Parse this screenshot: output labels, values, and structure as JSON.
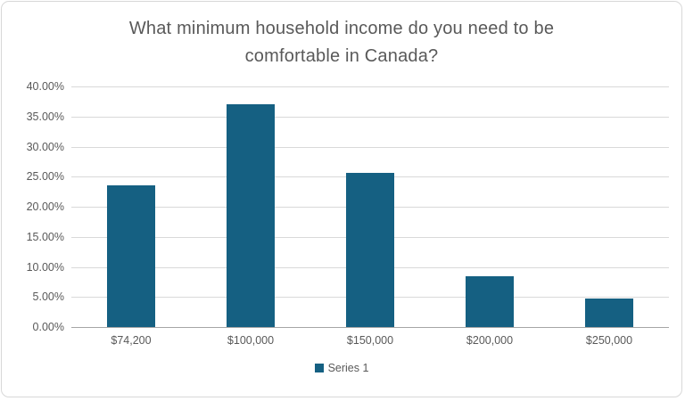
{
  "window": {
    "background": "#FFFFFF",
    "border_color": "#D8D8D8"
  },
  "chart_data": {
    "type": "bar",
    "title": "What minimum household income do you need to be comfortable in Canada?",
    "title_lines": [
      "What minimum household income do you need to be",
      "comfortable in Canada?"
    ],
    "categories": [
      "$74,200",
      "$100,000",
      "$150,000",
      "$200,000",
      "$250,000"
    ],
    "series": [
      {
        "name": "Series 1",
        "color": "#156082",
        "values": [
          23.6,
          37.1,
          25.7,
          8.4,
          4.8
        ]
      }
    ],
    "xlabel": "",
    "ylabel": "",
    "ylim": [
      0,
      40
    ],
    "y_ticks": [
      {
        "value": 0,
        "label": "0.00%"
      },
      {
        "value": 5,
        "label": "5.00%"
      },
      {
        "value": 10,
        "label": "10.00%"
      },
      {
        "value": 15,
        "label": "15.00%"
      },
      {
        "value": 20,
        "label": "20.00%"
      },
      {
        "value": 25,
        "label": "25.00%"
      },
      {
        "value": 30,
        "label": "30.00%"
      },
      {
        "value": 35,
        "label": "35.00%"
      },
      {
        "value": 40,
        "label": "40.00%"
      }
    ],
    "grid": true,
    "legend_position": "bottom",
    "colors": {
      "bar": "#156082",
      "gridline": "#D9D9D9",
      "axis_line": "#A6A6A6",
      "text": "#595959"
    }
  }
}
